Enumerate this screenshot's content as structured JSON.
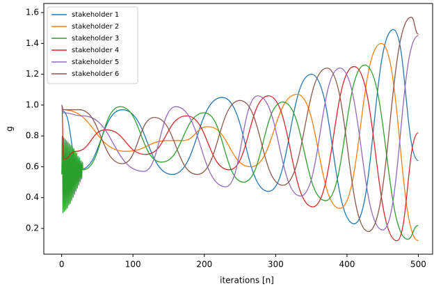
{
  "chart_data": {
    "type": "line",
    "xlabel": "iterations [n]",
    "ylabel": "g",
    "xlim": [
      -25,
      520
    ],
    "ylim": [
      0.033,
      1.659
    ],
    "xticks": [
      0,
      100,
      200,
      300,
      400,
      500
    ],
    "yticks": [
      0.2,
      0.4,
      0.6,
      0.8,
      {
        "value": 1,
        "label": "1.0"
      },
      1.2,
      1.4,
      1.6
    ],
    "legend": "upper left",
    "series": [
      {
        "name": "stakeholder 1",
        "color": "#1f77b4",
        "x": [
          0,
          2,
          25,
          85,
          155,
          225,
          290,
          350,
          410,
          465,
          500
        ],
        "values": [
          1.0,
          0.96,
          0.58,
          0.97,
          0.55,
          1.05,
          0.44,
          1.2,
          0.23,
          1.49,
          0.64
        ]
      },
      {
        "name": "stakeholder 2",
        "color": "#ff7f0e",
        "x": [
          0,
          2,
          90,
          150,
          170,
          205,
          265,
          330,
          390,
          448,
          500
        ],
        "values": [
          1.0,
          0.97,
          0.7,
          0.77,
          0.77,
          0.86,
          0.6,
          1.07,
          0.33,
          1.4,
          0.12
        ]
      },
      {
        "name": "stakeholder 3",
        "color": "#2ca02c",
        "x": [
          0,
          1,
          2,
          3,
          4,
          5,
          6,
          7,
          8,
          9,
          10,
          11,
          12,
          13,
          14,
          15,
          16,
          17,
          18,
          19,
          20,
          21,
          22,
          23,
          24,
          25,
          26,
          27,
          28,
          29,
          30,
          82,
          140,
          200,
          255,
          310,
          370,
          425,
          485,
          500
        ],
        "values": [
          0.55,
          0.8,
          0.3,
          0.79,
          0.31,
          0.78,
          0.32,
          0.77,
          0.33,
          0.76,
          0.35,
          0.75,
          0.36,
          0.74,
          0.38,
          0.73,
          0.4,
          0.72,
          0.42,
          0.7,
          0.44,
          0.69,
          0.46,
          0.67,
          0.48,
          0.66,
          0.5,
          0.64,
          0.52,
          0.63,
          0.58,
          0.99,
          0.63,
          0.95,
          0.5,
          1.02,
          0.38,
          1.26,
          0.13,
          0.22
        ]
      },
      {
        "name": "stakeholder 4",
        "color": "#d62728",
        "x": [
          0,
          3,
          20,
          62,
          118,
          175,
          235,
          290,
          352,
          410,
          470,
          500
        ],
        "values": [
          1.0,
          0.65,
          0.7,
          0.84,
          0.68,
          0.93,
          0.58,
          1.06,
          0.34,
          1.25,
          0.12,
          0.82
        ]
      },
      {
        "name": "stakeholder 5",
        "color": "#9467bd",
        "x": [
          0,
          2,
          30,
          115,
          160,
          230,
          275,
          335,
          390,
          450,
          500
        ],
        "values": [
          1.0,
          0.95,
          0.93,
          0.57,
          0.99,
          0.47,
          1.06,
          0.41,
          1.24,
          0.19,
          1.45
        ]
      },
      {
        "name": "stakeholder 6",
        "color": "#8c564b",
        "x": [
          0,
          2,
          25,
          85,
          130,
          190,
          250,
          310,
          372,
          430,
          490,
          500
        ],
        "values": [
          1.0,
          0.97,
          0.97,
          0.62,
          0.92,
          0.55,
          1.03,
          0.48,
          1.24,
          0.18,
          1.57,
          1.46
        ]
      }
    ]
  }
}
